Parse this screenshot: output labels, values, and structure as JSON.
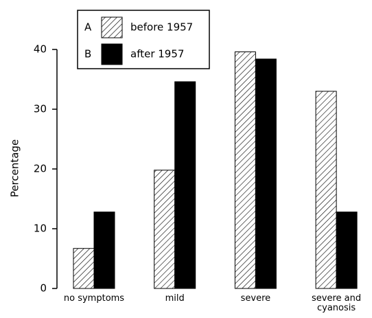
{
  "chart_data": {
    "type": "bar",
    "ylabel": "Percentage",
    "categories": [
      "no symptoms",
      "mild",
      "severe",
      "severe and cyanosis"
    ],
    "series": [
      {
        "key": "A",
        "name": "before 1957",
        "color": "#000000",
        "hatch": true,
        "values": [
          6.7,
          19.8,
          39.6,
          33
        ]
      },
      {
        "key": "B",
        "name": "after 1957",
        "color": "#000000",
        "hatch": false,
        "values": [
          12.8,
          34.6,
          38.4,
          12.8
        ]
      }
    ],
    "ylim": [
      0,
      40
    ],
    "yticks": [
      0,
      10,
      20,
      30,
      40
    ],
    "grid": false
  }
}
